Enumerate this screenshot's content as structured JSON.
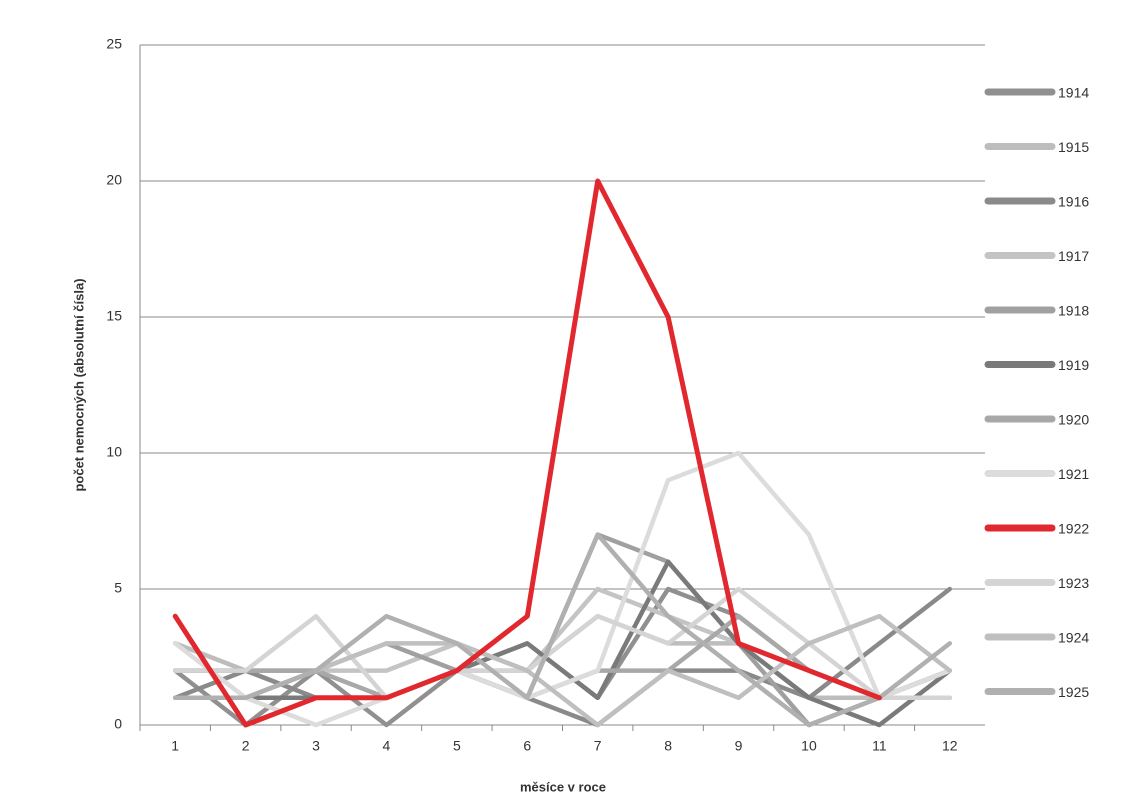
{
  "chart_data": {
    "type": "line",
    "y_axis_label": "počet nemocných (absolutní čísla)",
    "x_axis_label": "měsíce v roce",
    "categories": [
      "1",
      "2",
      "3",
      "4",
      "5",
      "6",
      "7",
      "8",
      "9",
      "10",
      "11",
      "12"
    ],
    "ylim": [
      0,
      25
    ],
    "yticks": [
      0,
      5,
      10,
      15,
      20,
      25
    ],
    "grid": true,
    "series": [
      {
        "name": "1914",
        "color": "#909090",
        "values": [
          2,
          0,
          2,
          0,
          2,
          3,
          1,
          5,
          4,
          2,
          1,
          2
        ]
      },
      {
        "name": "1915",
        "color": "#bdbdbd",
        "values": [
          3,
          2,
          1,
          1,
          2,
          2,
          4,
          3,
          3,
          1,
          1,
          2
        ]
      },
      {
        "name": "1916",
        "color": "#8a8a8a",
        "values": [
          1,
          2,
          1,
          1,
          2,
          1,
          0,
          2,
          2,
          1,
          3,
          5
        ]
      },
      {
        "name": "1917",
        "color": "#c4c4c4",
        "values": [
          1,
          1,
          2,
          2,
          3,
          2,
          5,
          4,
          3,
          2,
          1,
          1
        ]
      },
      {
        "name": "1918",
        "color": "#a0a0a0",
        "values": [
          2,
          2,
          2,
          3,
          2,
          1,
          7,
          6,
          3,
          0,
          1,
          1
        ]
      },
      {
        "name": "1919",
        "color": "#7a7a7a",
        "values": [
          1,
          1,
          1,
          1,
          2,
          3,
          1,
          6,
          3,
          1,
          0,
          2
        ]
      },
      {
        "name": "1920",
        "color": "#a8a8a8",
        "values": [
          2,
          2,
          2,
          1,
          2,
          1,
          2,
          2,
          4,
          2,
          1,
          2
        ]
      },
      {
        "name": "1921",
        "color": "#dcdcdc",
        "values": [
          3,
          1,
          0,
          1,
          2,
          1,
          2,
          9,
          10,
          7,
          1,
          2
        ]
      },
      {
        "name": "1922",
        "color": "#e0282e",
        "values": [
          4,
          0,
          1,
          1,
          2,
          4,
          20,
          15,
          3,
          2,
          1,
          null
        ]
      },
      {
        "name": "1923",
        "color": "#d4d4d4",
        "values": [
          2,
          2,
          4,
          1,
          2,
          2,
          4,
          3,
          5,
          3,
          1,
          1
        ]
      },
      {
        "name": "1924",
        "color": "#bfbfbf",
        "values": [
          1,
          1,
          2,
          3,
          3,
          2,
          0,
          2,
          1,
          3,
          4,
          2
        ]
      },
      {
        "name": "1925",
        "color": "#b0b0b0",
        "values": [
          1,
          1,
          2,
          4,
          3,
          1,
          7,
          4,
          2,
          0,
          1,
          3
        ]
      }
    ]
  }
}
